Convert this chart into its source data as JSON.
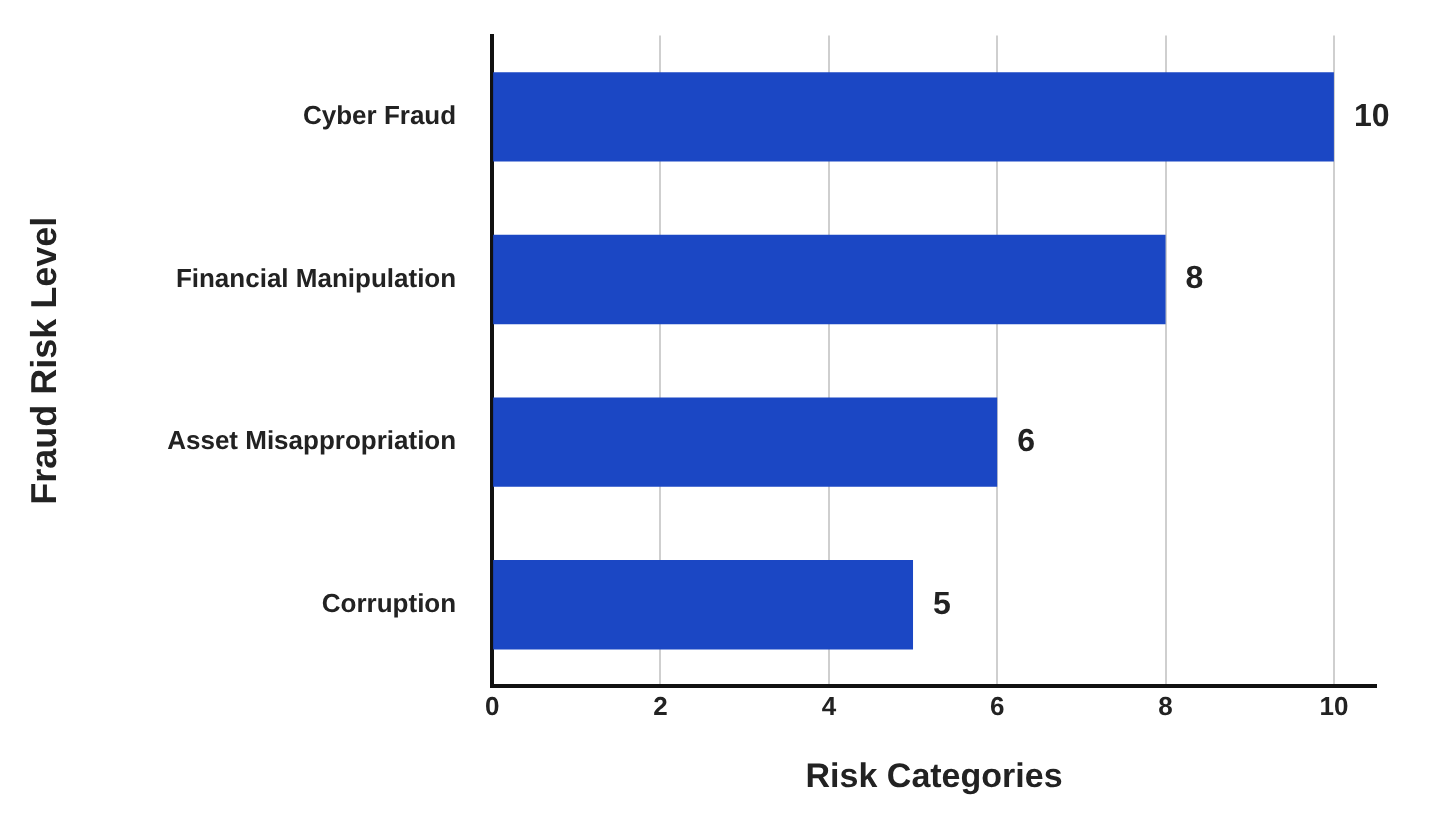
{
  "chart_data": {
    "type": "bar",
    "orientation": "horizontal",
    "xlabel": "Risk Categories",
    "ylabel": "Fraud Risk Level",
    "categories": [
      "Cyber Fraud",
      "Financial Manipulation",
      "Asset Misappropriation",
      "Corruption"
    ],
    "values": [
      10,
      8,
      6,
      5
    ],
    "color": "#1b47c4",
    "xlim": [
      0,
      10.5
    ],
    "xticks": [
      0,
      2,
      4,
      6,
      8,
      10
    ],
    "grid": "x",
    "data_labels": true,
    "legend": false
  }
}
